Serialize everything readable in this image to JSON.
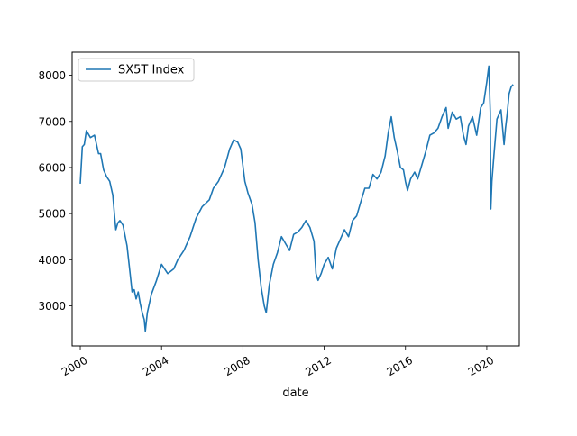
{
  "chart_data": {
    "type": "line",
    "title": "",
    "xlabel": "date",
    "ylabel": "",
    "xlim": [
      1999.6,
      2021.6
    ],
    "ylim": [
      2130,
      8500
    ],
    "x_ticks": [
      2000,
      2004,
      2008,
      2012,
      2016,
      2020
    ],
    "x_tick_labels": [
      "2000",
      "2004",
      "2008",
      "2012",
      "2016",
      "2020"
    ],
    "y_ticks": [
      3000,
      4000,
      5000,
      6000,
      7000,
      8000
    ],
    "y_tick_labels": [
      "3000",
      "4000",
      "5000",
      "6000",
      "7000",
      "8000"
    ],
    "grid": false,
    "legend_position": "top-left",
    "series": [
      {
        "name": "SX5T Index",
        "color": "#1f77b4",
        "x": [
          2000.0,
          2000.1,
          2000.2,
          2000.3,
          2000.5,
          2000.7,
          2000.9,
          2001.0,
          2001.15,
          2001.3,
          2001.45,
          2001.6,
          2001.7,
          2001.75,
          2001.85,
          2001.95,
          2002.1,
          2002.3,
          2002.45,
          2002.55,
          2002.65,
          2002.75,
          2002.85,
          2002.95,
          2003.05,
          2003.15,
          2003.2,
          2003.3,
          2003.5,
          2003.75,
          2004.0,
          2004.3,
          2004.6,
          2004.8,
          2005.1,
          2005.4,
          2005.7,
          2006.0,
          2006.35,
          2006.55,
          2006.8,
          2007.1,
          2007.35,
          2007.55,
          2007.75,
          2007.9,
          2008.1,
          2008.25,
          2008.45,
          2008.6,
          2008.75,
          2008.9,
          2009.05,
          2009.15,
          2009.3,
          2009.5,
          2009.7,
          2009.9,
          2010.1,
          2010.3,
          2010.5,
          2010.7,
          2010.9,
          2011.1,
          2011.3,
          2011.5,
          2011.6,
          2011.7,
          2011.85,
          2012.0,
          2012.2,
          2012.4,
          2012.6,
          2012.8,
          2013.0,
          2013.2,
          2013.4,
          2013.6,
          2013.8,
          2014.0,
          2014.2,
          2014.4,
          2014.6,
          2014.8,
          2015.0,
          2015.15,
          2015.3,
          2015.45,
          2015.6,
          2015.75,
          2015.9,
          2016.0,
          2016.1,
          2016.25,
          2016.45,
          2016.6,
          2016.8,
          2017.0,
          2017.2,
          2017.4,
          2017.6,
          2017.8,
          2018.0,
          2018.1,
          2018.3,
          2018.5,
          2018.7,
          2018.85,
          2018.98,
          2019.1,
          2019.3,
          2019.5,
          2019.7,
          2019.85,
          2020.0,
          2020.1,
          2020.17,
          2020.2,
          2020.25,
          2020.35,
          2020.5,
          2020.7,
          2020.85,
          2020.92,
          2021.0,
          2021.1,
          2021.2,
          2021.3
        ],
        "y": [
          5650,
          6450,
          6500,
          6800,
          6650,
          6700,
          6300,
          6300,
          5950,
          5800,
          5700,
          5400,
          4900,
          4650,
          4800,
          4850,
          4750,
          4300,
          3700,
          3300,
          3350,
          3150,
          3300,
          3050,
          2850,
          2700,
          2450,
          2850,
          3250,
          3550,
          3900,
          3700,
          3800,
          4000,
          4200,
          4500,
          4900,
          5150,
          5300,
          5550,
          5700,
          6000,
          6400,
          6600,
          6550,
          6400,
          5700,
          5450,
          5200,
          4800,
          4000,
          3400,
          3000,
          2850,
          3450,
          3900,
          4150,
          4500,
          4350,
          4200,
          4550,
          4600,
          4700,
          4850,
          4700,
          4400,
          3700,
          3550,
          3700,
          3900,
          4050,
          3800,
          4250,
          4450,
          4650,
          4500,
          4850,
          4950,
          5250,
          5550,
          5550,
          5850,
          5750,
          5900,
          6250,
          6750,
          7100,
          6650,
          6350,
          6000,
          5950,
          5700,
          5500,
          5750,
          5900,
          5750,
          6050,
          6350,
          6700,
          6750,
          6850,
          7100,
          7300,
          6850,
          7200,
          7050,
          7100,
          6700,
          6500,
          6900,
          7100,
          6700,
          7300,
          7400,
          7850,
          8200,
          7200,
          5100,
          5700,
          6250,
          7050,
          7250,
          6500,
          6850,
          7150,
          7600,
          7750,
          7800
        ]
      }
    ]
  }
}
